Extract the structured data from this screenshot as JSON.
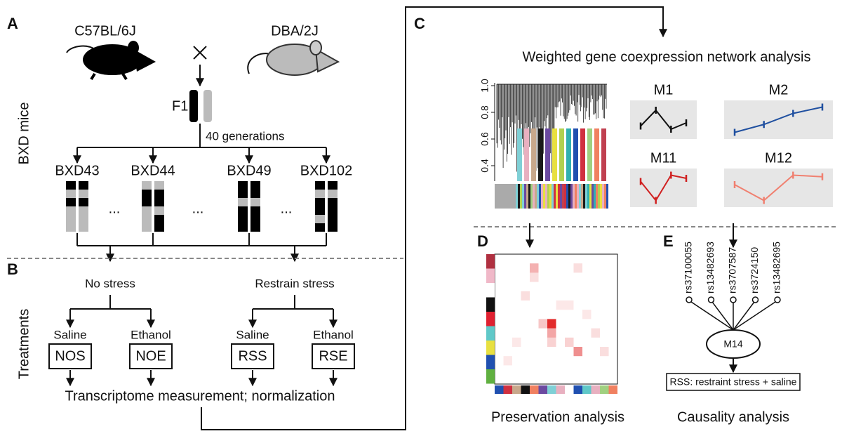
{
  "panel_a": {
    "label": "A",
    "strains": [
      "C57BL/6J",
      "DBA/2J"
    ],
    "side_label": "BXD mice",
    "f1": "F1",
    "generations": "40 generations",
    "lines": [
      "BXD43",
      "BXD44",
      "BXD49",
      "BXD102"
    ],
    "ellipses": [
      "...",
      "...",
      "..."
    ]
  },
  "panel_b": {
    "label": "B",
    "side_label": "Treatments",
    "conditions": [
      "No stress",
      "Restrain stress"
    ],
    "treatments": [
      {
        "drug": "Saline",
        "group": "NOS"
      },
      {
        "drug": "Ethanol",
        "group": "NOE"
      },
      {
        "drug": "Saline",
        "group": "RSS"
      },
      {
        "drug": "Ethanol",
        "group": "RSE"
      }
    ],
    "footer": "Transcriptome measurement; normalization"
  },
  "panel_c": {
    "label": "C",
    "title": "Weighted gene coexpression network analysis",
    "dendrogram_axis": [
      "1.0",
      "0.8",
      "0.6",
      "0.4"
    ],
    "modules": [
      "M1",
      "M2",
      "M11",
      "M12"
    ]
  },
  "panel_d": {
    "label": "D",
    "caption": "Preservation analysis"
  },
  "panel_e": {
    "label": "E",
    "snps": [
      "rs37100055",
      "rs13482693",
      "rs3707587",
      "rs3724150",
      "rs13482695"
    ],
    "node": "M14",
    "outcome": "RSS: restraint stress + saline",
    "caption": "Causality analysis"
  }
}
